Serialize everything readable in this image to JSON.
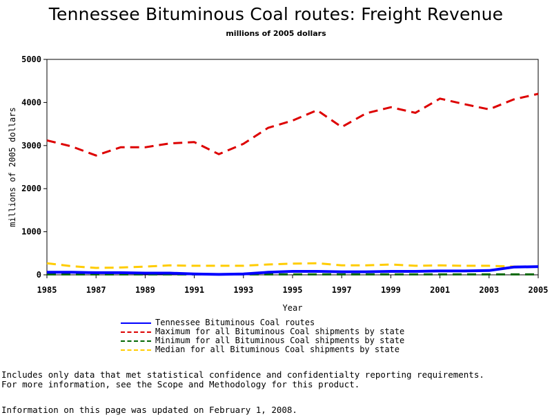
{
  "chart_data": {
    "type": "line",
    "title": "Tennessee Bituminous Coal routes: Freight Revenue",
    "subtitle": "millions of 2005 dollars",
    "xlabel": "Year",
    "ylabel": "millions of 2005 dollars",
    "xlim": [
      1985,
      2005
    ],
    "ylim": [
      0,
      5000
    ],
    "xticks": [
      "1985",
      "1987",
      "1989",
      "1991",
      "1993",
      "1995",
      "1997",
      "1999",
      "2001",
      "2003",
      "2005"
    ],
    "yticks": [
      "0",
      "1000",
      "2000",
      "3000",
      "4000",
      "5000"
    ],
    "grid": false,
    "legend_position": "bottom",
    "x": [
      1985,
      1986,
      1987,
      1988,
      1989,
      1990,
      1991,
      1992,
      1993,
      1994,
      1995,
      1996,
      1997,
      1998,
      1999,
      2000,
      2001,
      2002,
      2003,
      2004,
      2005
    ],
    "series": [
      {
        "name": "Tennessee Bituminous Coal routes",
        "color": "#0000ff",
        "dash": "solid",
        "values": [
          60,
          60,
          50,
          50,
          40,
          40,
          20,
          10,
          20,
          60,
          80,
          80,
          70,
          70,
          80,
          80,
          90,
          90,
          100,
          180,
          190
        ]
      },
      {
        "name": "Maximum for all Bituminous Coal shipments by state",
        "color": "#dd0000",
        "dash": "dashed",
        "values": [
          3120,
          2980,
          2770,
          2960,
          2960,
          3050,
          3080,
          2800,
          3040,
          3410,
          3580,
          3820,
          3430,
          3750,
          3890,
          3760,
          4090,
          3960,
          3840,
          4070,
          4200
        ]
      },
      {
        "name": "Minimum for all Bituminous Coal shipments by state",
        "color": "#006600",
        "dash": "dashed",
        "values": [
          10,
          10,
          10,
          10,
          10,
          10,
          10,
          10,
          10,
          10,
          10,
          10,
          10,
          10,
          10,
          10,
          10,
          10,
          10,
          10,
          10
        ]
      },
      {
        "name": "Median for all Bituminous Coal shipments by state",
        "color": "#ffcc00",
        "dash": "dashed",
        "values": [
          270,
          200,
          160,
          170,
          190,
          220,
          210,
          210,
          210,
          240,
          260,
          270,
          220,
          220,
          240,
          210,
          220,
          210,
          210,
          190,
          190
        ]
      }
    ]
  },
  "footnotes": {
    "line1": "Includes only data that met statistical confidence and confidentialty reporting requirements.",
    "line2": "For more information, see the Scope and Methodology for this product.",
    "updated": "Information on this page was updated on February 1, 2008."
  }
}
